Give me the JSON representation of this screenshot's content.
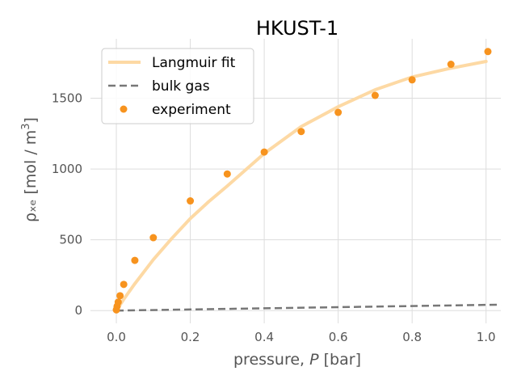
{
  "chart_data": {
    "type": "scatter",
    "title": "HKUST-1",
    "xlabel": "pressure, P [bar]",
    "xlabel_parts": {
      "pre": "pressure, ",
      "var": "P",
      "post": " [bar]"
    },
    "ylabel": "ρₓₑ [mol / m³]",
    "ylabel_parts": {
      "base": "ρₓₑ [mol / m",
      "sup": "3",
      "close": "]"
    },
    "xlim": [
      -0.07,
      1.04
    ],
    "ylim": [
      -90,
      1920
    ],
    "x_ticks": [
      0.0,
      0.2,
      0.4,
      0.6,
      0.8,
      1.0
    ],
    "x_tick_labels": [
      "0.0",
      "0.2",
      "0.4",
      "0.6",
      "0.8",
      "1.0"
    ],
    "y_ticks": [
      0,
      500,
      1000,
      1500
    ],
    "y_tick_labels": [
      "0",
      "500",
      "1000",
      "1500"
    ],
    "grid": true,
    "legend_position": "upper-left",
    "series": [
      {
        "name": "Langmuir fit",
        "kind": "line",
        "style": "solid",
        "color": "#fdd9a4",
        "x": [
          0,
          0.02,
          0.05,
          0.1,
          0.15,
          0.2,
          0.25,
          0.3,
          0.4,
          0.5,
          0.6,
          0.7,
          0.8,
          0.9,
          1.0
        ],
        "y": [
          0,
          80,
          190,
          360,
          510,
          650,
          770,
          880,
          1110,
          1300,
          1440,
          1560,
          1650,
          1710,
          1760
        ]
      },
      {
        "name": "bulk gas",
        "kind": "line",
        "style": "dashed",
        "color": "#777777",
        "x": [
          0,
          1.04
        ],
        "y": [
          0,
          42
        ]
      },
      {
        "name": "experiment",
        "kind": "scatter",
        "color": "#f7931e",
        "x": [
          0.0,
          0.002,
          0.005,
          0.01,
          0.02,
          0.05,
          0.1,
          0.2,
          0.3,
          0.4,
          0.5,
          0.6,
          0.7,
          0.8,
          0.905,
          1.005
        ],
        "y": [
          5,
          30,
          60,
          105,
          185,
          355,
          515,
          775,
          965,
          1120,
          1265,
          1400,
          1520,
          1630,
          1740,
          1830
        ]
      }
    ]
  }
}
